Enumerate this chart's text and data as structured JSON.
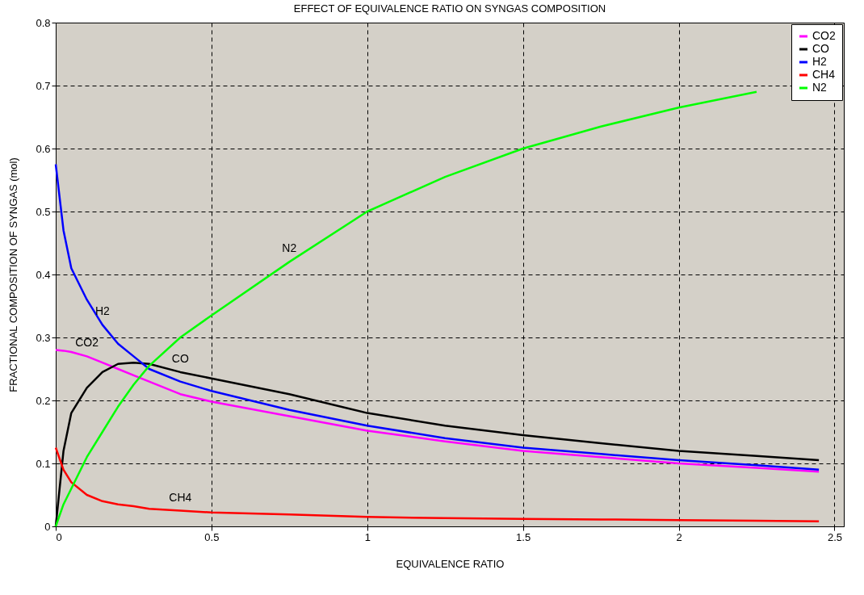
{
  "chart_data": {
    "type": "line",
    "title": "EFFECT OF EQUIVALENCE RATIO ON SYNGAS COMPOSITION",
    "xlabel": "EQUIVALENCE RATIO",
    "ylabel": "FRACTIONAL COMPOSITION OF SYNGAS (mol)",
    "x": [
      0,
      0.025,
      0.05,
      0.1,
      0.15,
      0.2,
      0.25,
      0.3,
      0.4,
      0.5,
      0.75,
      1.0,
      1.25,
      1.5,
      1.75,
      2.0,
      2.25,
      2.45
    ],
    "series": [
      {
        "name": "CO2",
        "color": "#ff00ff",
        "values": [
          0.28,
          0.279,
          0.277,
          0.27,
          0.26,
          0.25,
          0.24,
          0.23,
          0.21,
          0.198,
          0.175,
          0.152,
          0.135,
          0.12,
          0.11,
          0.1,
          0.093,
          0.087
        ]
      },
      {
        "name": "CO",
        "color": "#000000",
        "values": [
          0,
          0.12,
          0.18,
          0.22,
          0.245,
          0.258,
          0.26,
          0.258,
          0.245,
          0.235,
          0.21,
          0.18,
          0.16,
          0.145,
          0.132,
          0.12,
          0.112,
          0.105
        ]
      },
      {
        "name": "H2",
        "color": "#0000ff",
        "values": [
          0.575,
          0.47,
          0.41,
          0.36,
          0.32,
          0.29,
          0.27,
          0.25,
          0.23,
          0.215,
          0.185,
          0.16,
          0.14,
          0.125,
          0.115,
          0.105,
          0.097,
          0.09
        ]
      },
      {
        "name": "CH4",
        "color": "#ff0000",
        "values": [
          0.125,
          0.09,
          0.07,
          0.05,
          0.04,
          0.035,
          0.032,
          0.028,
          0.025,
          0.022,
          0.019,
          0.015,
          0.013,
          0.012,
          0.011,
          0.01,
          0.009,
          0.008
        ]
      },
      {
        "name": "N2",
        "color": "#00ff00",
        "values": [
          0,
          0.035,
          0.06,
          0.11,
          0.15,
          0.19,
          0.225,
          0.255,
          0.3,
          0.335,
          0.42,
          0.5,
          0.555,
          0.6,
          0.635,
          0.665,
          0.69,
          null
        ]
      }
    ],
    "annotations": [
      {
        "text": "N2",
        "x": 0.75,
        "y": 0.42
      },
      {
        "text": "H2",
        "x": 0.15,
        "y": 0.32
      },
      {
        "text": "CO2",
        "x": 0.1,
        "y": 0.27
      },
      {
        "text": "CO",
        "x": 0.4,
        "y": 0.245
      },
      {
        "text": "CH4",
        "x": 0.4,
        "y": 0.025
      }
    ],
    "xlim": [
      0,
      2.53
    ],
    "ylim": [
      0,
      0.8
    ],
    "xticks": [
      0,
      0.5,
      1,
      1.5,
      2,
      2.5
    ],
    "yticks": [
      0,
      0.1,
      0.2,
      0.3,
      0.4,
      0.5,
      0.6,
      0.7,
      0.8
    ],
    "grid": true,
    "legend": "top right"
  }
}
